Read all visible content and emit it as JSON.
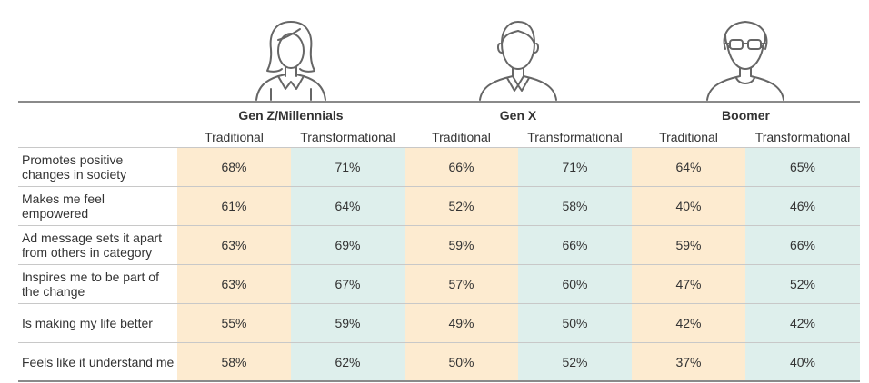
{
  "groups": [
    {
      "label": "Gen Z/Millennials",
      "icon": "woman-icon"
    },
    {
      "label": "Gen X",
      "icon": "man-icon"
    },
    {
      "label": "Boomer",
      "icon": "older-man-glasses-icon"
    }
  ],
  "subheaders": [
    "Traditional",
    "Transformational",
    "Traditional",
    "Transformational",
    "Traditional",
    "Transformational"
  ],
  "rows": [
    {
      "label": "Promotes positive changes in society",
      "values": [
        "68%",
        "71%",
        "66%",
        "71%",
        "64%",
        "65%"
      ]
    },
    {
      "label": "Makes me feel empowered",
      "values": [
        "61%",
        "64%",
        "52%",
        "58%",
        "40%",
        "46%"
      ]
    },
    {
      "label": "Ad message sets it apart from others in category",
      "values": [
        "63%",
        "69%",
        "59%",
        "66%",
        "59%",
        "66%"
      ]
    },
    {
      "label": "Inspires me to be part of the change",
      "values": [
        "63%",
        "67%",
        "57%",
        "60%",
        "47%",
        "52%"
      ]
    },
    {
      "label": "Is making my life better",
      "values": [
        "55%",
        "59%",
        "49%",
        "50%",
        "42%",
        "42%"
      ]
    },
    {
      "label": "Feels like it understand me",
      "values": [
        "58%",
        "62%",
        "50%",
        "52%",
        "37%",
        "40%"
      ]
    }
  ],
  "colors": {
    "traditional_fill": "#fdebd0",
    "transformational_fill": "#deefec",
    "icon_stroke": "#666666"
  }
}
